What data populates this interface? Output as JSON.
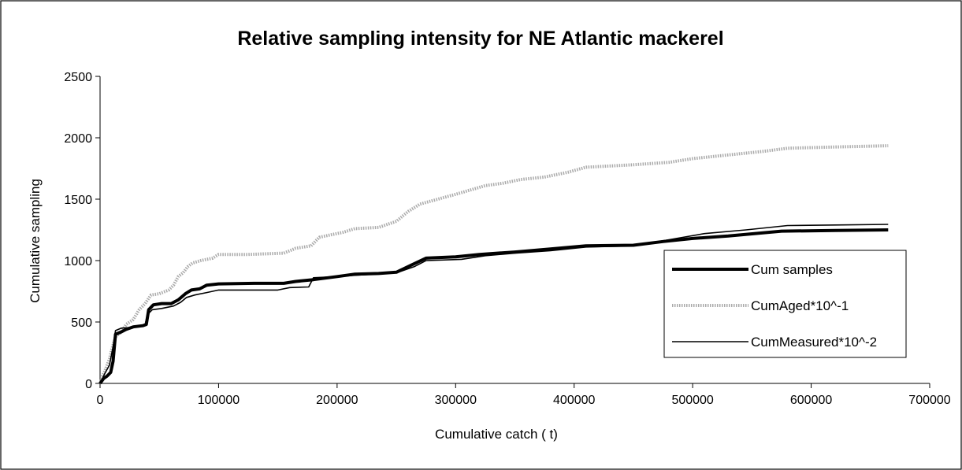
{
  "chart_data": {
    "type": "line",
    "title": "Relative sampling intensity for NE Atlantic mackerel",
    "xlabel": "Cumulative catch ( t)",
    "ylabel": "Cumulative sampling",
    "xlim": [
      0,
      700000
    ],
    "ylim": [
      0,
      2500
    ],
    "x_ticks": [
      0,
      100000,
      200000,
      300000,
      400000,
      500000,
      600000,
      700000
    ],
    "x_tick_labels": [
      "0",
      "100000",
      "200000",
      "300000",
      "400000",
      "500000",
      "600000",
      "700000"
    ],
    "y_ticks": [
      0,
      500,
      1000,
      1500,
      2000,
      2500
    ],
    "y_tick_labels": [
      "0",
      "500",
      "1000",
      "1500",
      "2000",
      "2500"
    ],
    "grid": false,
    "legend_position": "right",
    "series": [
      {
        "name": "Cum samples",
        "color": "#000000",
        "style": "thick",
        "points": [
          [
            0,
            0
          ],
          [
            3000,
            40
          ],
          [
            6000,
            60
          ],
          [
            9000,
            90
          ],
          [
            11000,
            180
          ],
          [
            13000,
            400
          ],
          [
            18000,
            420
          ],
          [
            22000,
            440
          ],
          [
            28000,
            460
          ],
          [
            36000,
            470
          ],
          [
            39000,
            480
          ],
          [
            41000,
            600
          ],
          [
            45000,
            640
          ],
          [
            52000,
            650
          ],
          [
            60000,
            650
          ],
          [
            66000,
            680
          ],
          [
            72000,
            730
          ],
          [
            77000,
            760
          ],
          [
            84000,
            770
          ],
          [
            90000,
            800
          ],
          [
            100000,
            810
          ],
          [
            130000,
            815
          ],
          [
            155000,
            815
          ],
          [
            165000,
            830
          ],
          [
            180000,
            845
          ],
          [
            200000,
            870
          ],
          [
            215000,
            890
          ],
          [
            235000,
            895
          ],
          [
            250000,
            905
          ],
          [
            262000,
            960
          ],
          [
            275000,
            1020
          ],
          [
            300000,
            1030
          ],
          [
            320000,
            1050
          ],
          [
            350000,
            1070
          ],
          [
            380000,
            1095
          ],
          [
            410000,
            1120
          ],
          [
            450000,
            1125
          ],
          [
            475000,
            1155
          ],
          [
            500000,
            1180
          ],
          [
            530000,
            1200
          ],
          [
            575000,
            1240
          ],
          [
            620000,
            1245
          ],
          [
            665000,
            1250
          ]
        ]
      },
      {
        "name": "CumAged*10^-1",
        "color": "#aaaaaa",
        "style": "dotted",
        "points": [
          [
            0,
            0
          ],
          [
            2000,
            60
          ],
          [
            4000,
            100
          ],
          [
            6000,
            150
          ],
          [
            8000,
            200
          ],
          [
            10000,
            280
          ],
          [
            13000,
            380
          ],
          [
            18000,
            420
          ],
          [
            22000,
            480
          ],
          [
            28000,
            520
          ],
          [
            33000,
            600
          ],
          [
            38000,
            650
          ],
          [
            43000,
            720
          ],
          [
            50000,
            730
          ],
          [
            58000,
            760
          ],
          [
            62000,
            800
          ],
          [
            66000,
            870
          ],
          [
            70000,
            900
          ],
          [
            74000,
            950
          ],
          [
            78000,
            980
          ],
          [
            85000,
            1000
          ],
          [
            95000,
            1020
          ],
          [
            100000,
            1050
          ],
          [
            125000,
            1050
          ],
          [
            155000,
            1060
          ],
          [
            165000,
            1100
          ],
          [
            178000,
            1120
          ],
          [
            185000,
            1190
          ],
          [
            195000,
            1210
          ],
          [
            205000,
            1230
          ],
          [
            215000,
            1260
          ],
          [
            235000,
            1270
          ],
          [
            250000,
            1320
          ],
          [
            260000,
            1400
          ],
          [
            270000,
            1460
          ],
          [
            285000,
            1500
          ],
          [
            300000,
            1540
          ],
          [
            325000,
            1610
          ],
          [
            340000,
            1630
          ],
          [
            355000,
            1660
          ],
          [
            375000,
            1680
          ],
          [
            395000,
            1720
          ],
          [
            410000,
            1760
          ],
          [
            450000,
            1780
          ],
          [
            480000,
            1800
          ],
          [
            500000,
            1830
          ],
          [
            530000,
            1860
          ],
          [
            560000,
            1890
          ],
          [
            580000,
            1915
          ],
          [
            620000,
            1925
          ],
          [
            665000,
            1935
          ]
        ]
      },
      {
        "name": "CumMeasured*10^-2",
        "color": "#000000",
        "style": "thin",
        "points": [
          [
            0,
            0
          ],
          [
            4000,
            80
          ],
          [
            8000,
            150
          ],
          [
            11000,
            300
          ],
          [
            13000,
            430
          ],
          [
            18000,
            450
          ],
          [
            25000,
            455
          ],
          [
            38000,
            480
          ],
          [
            40000,
            560
          ],
          [
            44000,
            600
          ],
          [
            52000,
            610
          ],
          [
            62000,
            630
          ],
          [
            68000,
            660
          ],
          [
            73000,
            700
          ],
          [
            80000,
            720
          ],
          [
            90000,
            740
          ],
          [
            100000,
            760
          ],
          [
            150000,
            760
          ],
          [
            160000,
            780
          ],
          [
            176000,
            785
          ],
          [
            180000,
            860
          ],
          [
            200000,
            870
          ],
          [
            215000,
            880
          ],
          [
            240000,
            895
          ],
          [
            250000,
            900
          ],
          [
            265000,
            950
          ],
          [
            275000,
            1000
          ],
          [
            305000,
            1010
          ],
          [
            325000,
            1040
          ],
          [
            350000,
            1060
          ],
          [
            380000,
            1080
          ],
          [
            410000,
            1110
          ],
          [
            450000,
            1120
          ],
          [
            480000,
            1170
          ],
          [
            510000,
            1220
          ],
          [
            545000,
            1250
          ],
          [
            580000,
            1285
          ],
          [
            620000,
            1290
          ],
          [
            665000,
            1295
          ]
        ]
      }
    ]
  }
}
